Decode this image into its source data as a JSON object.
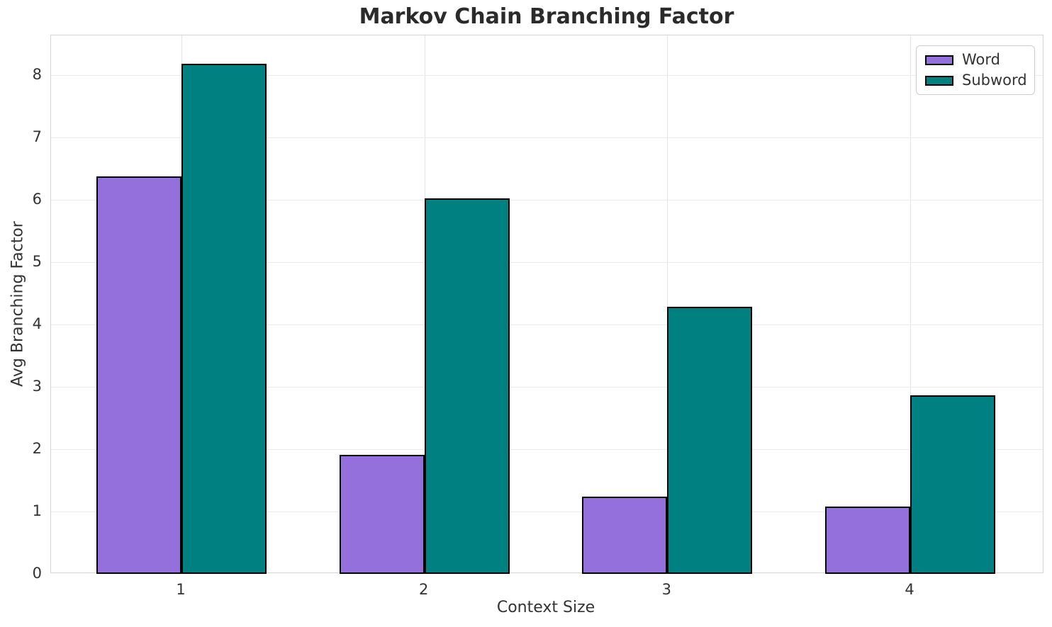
{
  "chart_data": {
    "type": "bar",
    "title": "Markov Chain Branching Factor",
    "xlabel": "Context Size",
    "ylabel": "Avg Branching Factor",
    "categories": [
      "1",
      "2",
      "3",
      "4"
    ],
    "series": [
      {
        "name": "Word",
        "color": "#9370DB",
        "values": [
          6.38,
          1.91,
          1.24,
          1.08
        ]
      },
      {
        "name": "Subword",
        "color": "#008080",
        "values": [
          8.18,
          6.02,
          4.29,
          2.87
        ]
      }
    ],
    "ylim": [
      0,
      8.64
    ],
    "yticks": [
      0,
      1,
      2,
      3,
      4,
      5,
      6,
      7,
      8
    ],
    "grid": true,
    "legend_position": "upper right",
    "bar_edge_color": "#000000",
    "background_color": "#ffffff",
    "grid_color": "#ebebeb",
    "text_color": "#333333",
    "title_color": "#2b2b2b"
  }
}
